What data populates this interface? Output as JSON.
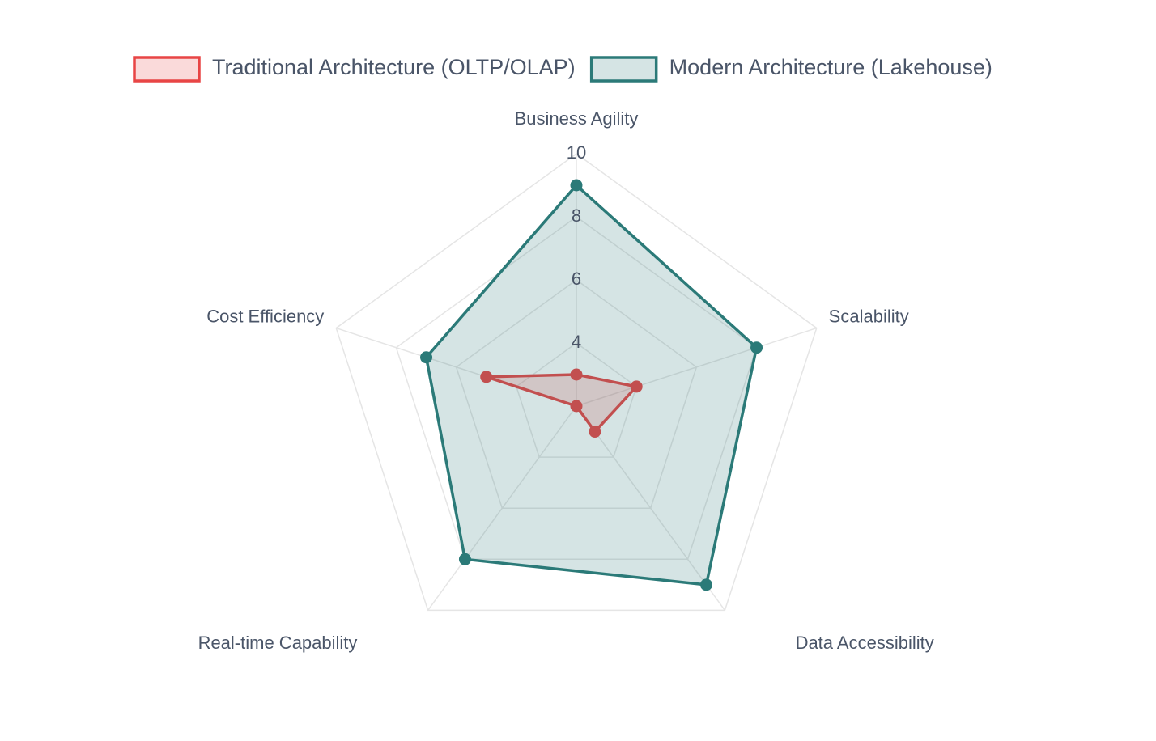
{
  "chart_data": {
    "type": "radar",
    "categories": [
      "Business Agility",
      "Scalability",
      "Data Accessibility",
      "Real-time Capability",
      "Cost Efficiency"
    ],
    "series": [
      {
        "name": "Traditional Architecture (OLTP/OLAP)",
        "color": "#e84545",
        "values": [
          3,
          4,
          3,
          2,
          5
        ]
      },
      {
        "name": "Modern Architecture (Lakehouse)",
        "color": "#2b7a78",
        "values": [
          9,
          8,
          9,
          8,
          7
        ]
      }
    ],
    "rlim": [
      2,
      10
    ],
    "rticks": [
      4,
      6,
      8,
      10
    ],
    "grid": true
  }
}
